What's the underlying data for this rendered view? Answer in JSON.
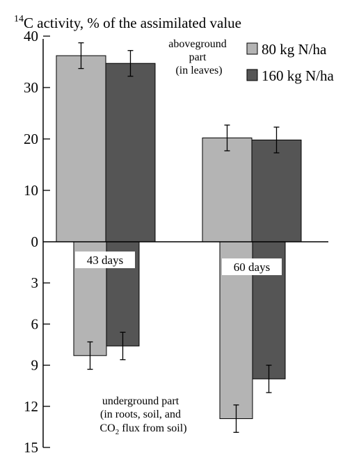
{
  "chart_data": {
    "type": "bar",
    "title": "C activity, % of the assimilated value",
    "title_superscript": "14",
    "categories": [
      "43 days",
      "60 days"
    ],
    "colors": {
      "80 kg N/ha": "#b4b4b4",
      "160 kg N/ha": "#555555"
    },
    "legend_position": "top-right",
    "grid": false,
    "upper_axis": {
      "ylim": [
        0,
        40
      ],
      "ticks": [
        "0",
        "10",
        "20",
        "30",
        "40"
      ],
      "annotation": [
        "aboveground",
        "part",
        "(in leaves)"
      ],
      "series": [
        {
          "name": "80 kg N/ha",
          "values": [
            36.2,
            20.2
          ],
          "errors": [
            2.5,
            2.5
          ]
        },
        {
          "name": "160 kg N/ha",
          "values": [
            34.7,
            19.8
          ],
          "errors": [
            2.5,
            2.5
          ]
        }
      ]
    },
    "lower_axis": {
      "ylim": [
        0,
        15
      ],
      "ticks": [
        "3",
        "6",
        "9",
        "12",
        "15"
      ],
      "annotation": [
        "underground part",
        "(in roots, soil, and",
        "CO",
        "2",
        " flux from soil)"
      ],
      "series": [
        {
          "name": "80 kg N/ha",
          "values": [
            8.3,
            12.9
          ],
          "errors": [
            1.0,
            1.0
          ]
        },
        {
          "name": "160 kg N/ha",
          "values": [
            7.6,
            10.0
          ],
          "errors": [
            1.0,
            1.0
          ]
        }
      ]
    }
  }
}
